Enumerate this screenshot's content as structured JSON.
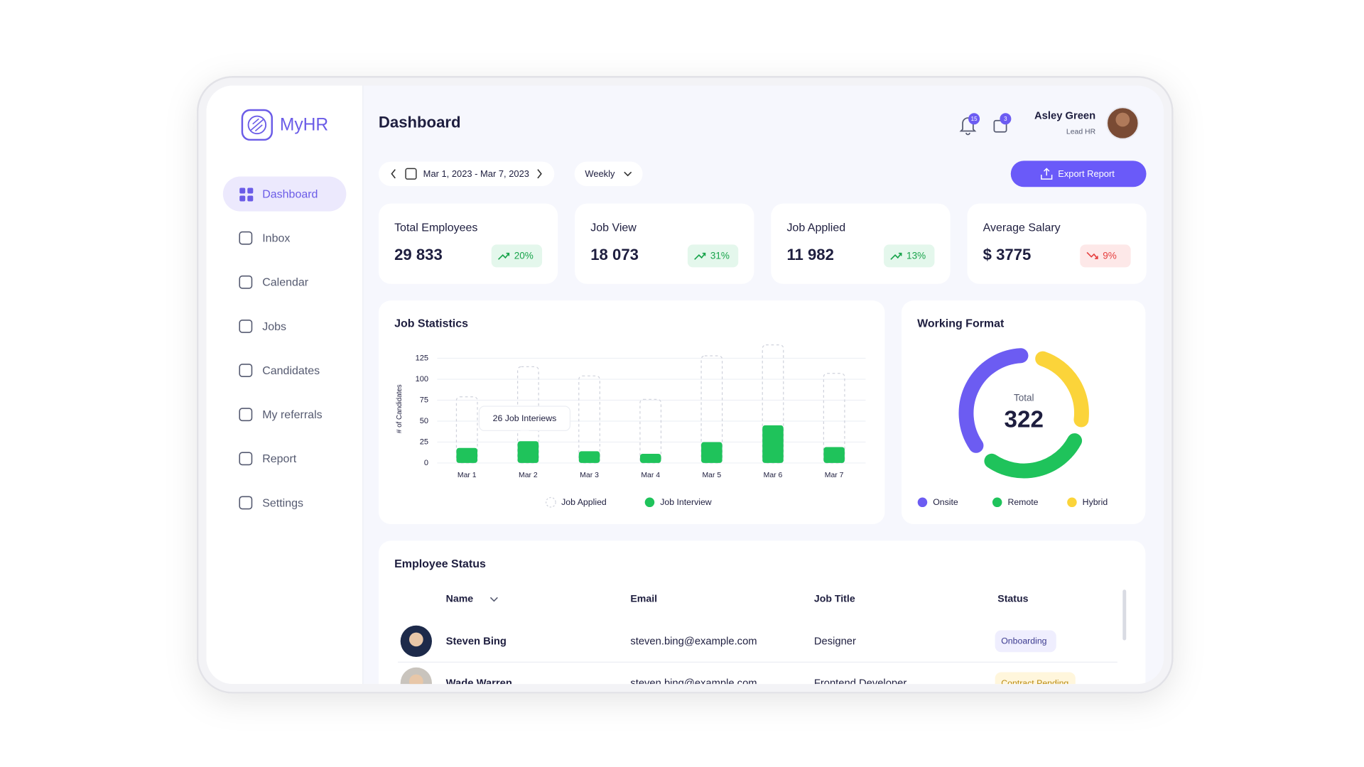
{
  "app": {
    "name": "MyHR"
  },
  "nav": [
    "Dashboard",
    "Inbox",
    "Calendar",
    "Jobs",
    "Candidates",
    "My referrals",
    "Report",
    "Settings"
  ],
  "header": {
    "title": "Dashboard",
    "notifications": 15,
    "messages": 3,
    "user_name": "Asley Green",
    "user_role": "Lead HR"
  },
  "filters": {
    "date_range": "Mar 1, 2023 - Mar 7, 2023",
    "period": "Weekly",
    "export": "Export Report"
  },
  "stats": [
    {
      "label": "Total Employees",
      "value": "29 833",
      "change": "20%",
      "trend": "up"
    },
    {
      "label": "Job View",
      "value": "18 073",
      "change": "31%",
      "trend": "up"
    },
    {
      "label": "Job Applied",
      "value": "11 982",
      "change": "13%",
      "trend": "up"
    },
    {
      "label": "Average Salary",
      "value": "$ 3775",
      "change": "9%",
      "trend": "down"
    }
  ],
  "chart_data": [
    {
      "type": "bar",
      "title": "Job Statistics",
      "y_label": "# of Candidates",
      "categories": [
        "Mar 1",
        "Mar 2",
        "Mar 3",
        "Mar 4",
        "Mar 5",
        "Mar 6",
        "Mar 7"
      ],
      "series": [
        {
          "name": "Job Applied",
          "color": "#cfd2dc",
          "style": "dashed",
          "values": [
            79,
            115,
            104,
            76,
            128,
            141,
            107
          ]
        },
        {
          "name": "Job Interview",
          "color": "#1fc35b",
          "values": [
            18,
            26,
            14,
            11,
            25,
            45,
            19
          ]
        }
      ],
      "ylim": [
        0,
        145
      ],
      "yticks": [
        0,
        25,
        50,
        75,
        100,
        125
      ],
      "grid": true,
      "annotation": "26 Job Interiews"
    },
    {
      "type": "pie",
      "title": "Working Format",
      "total_label": "Total",
      "total": 322,
      "categories": [
        "Onsite",
        "Remote",
        "Hybrid"
      ],
      "values": [
        128,
        105,
        89
      ],
      "colors": [
        "#6c5cf2",
        "#1fc35b",
        "#fbd43a"
      ]
    }
  ],
  "table": {
    "title": "Employee Status",
    "columns": [
      "Name",
      "Email",
      "Job Title",
      "Status"
    ],
    "rows": [
      [
        "Steven Bing",
        "steven.bing@example.com",
        "Designer",
        "Onboarding"
      ],
      [
        "Wade Warren",
        "steven.bing@example.com",
        "Frontend Developer",
        "Contract Pending"
      ]
    ]
  }
}
